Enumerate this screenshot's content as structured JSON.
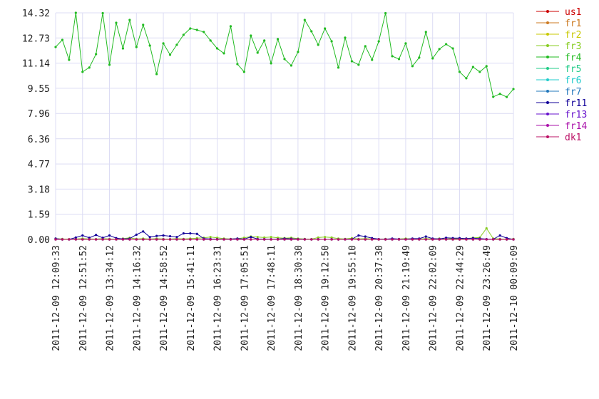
{
  "chart_data": {
    "type": "line",
    "categories": [
      "2011-12-09 12:09:33",
      null,
      null,
      null,
      "2011-12-09 12:51:52",
      null,
      null,
      null,
      "2011-12-09 13:34:12",
      null,
      null,
      null,
      "2011-12-09 14:16:32",
      null,
      null,
      null,
      "2011-12-09 14:58:52",
      null,
      null,
      null,
      "2011-12-09 15:41:11",
      null,
      null,
      null,
      "2011-12-09 16:23:31",
      null,
      null,
      null,
      "2011-12-09 17:05:51",
      null,
      null,
      null,
      "2011-12-09 17:48:11",
      null,
      null,
      null,
      "2011-12-09 18:30:30",
      null,
      null,
      null,
      "2011-12-09 19:12:50",
      null,
      null,
      null,
      "2011-12-09 19:55:10",
      null,
      null,
      null,
      "2011-12-09 20:37:30",
      null,
      null,
      null,
      "2011-12-09 21:19:49",
      null,
      null,
      null,
      "2011-12-09 22:02:09",
      null,
      null,
      null,
      "2011-12-09 22:44:29",
      null,
      null,
      null,
      "2011-12-09 23:26:49",
      null,
      null,
      null,
      "2011-12-10 00:09:09"
    ],
    "ylim": [
      0,
      14.32
    ],
    "yticks": [
      {
        "value": 0,
        "label": "0.00"
      },
      1.59,
      3.18,
      4.77,
      6.36,
      7.96,
      9.55,
      11.14,
      12.73,
      14.32
    ],
    "grid": true,
    "legend": "right",
    "series": [
      {
        "name": "us1",
        "color": "#cc0000",
        "values": [
          0,
          0,
          0,
          0,
          0,
          0,
          0,
          0,
          0,
          0,
          0,
          0,
          0,
          0,
          0,
          0,
          0,
          0,
          0,
          0,
          0,
          0,
          0,
          0,
          0,
          0,
          0,
          0,
          0,
          0,
          0,
          0,
          0,
          0,
          0,
          0,
          0,
          0,
          0,
          0,
          0,
          0,
          0,
          0,
          0,
          0,
          0,
          0,
          0,
          0,
          0,
          0,
          0,
          0,
          0,
          0,
          0,
          0,
          0,
          0,
          0,
          0,
          0,
          0,
          0,
          0,
          0,
          0,
          0
        ]
      },
      {
        "name": "fr1",
        "color": "#cc7a22",
        "values": [
          0,
          0,
          0,
          0,
          0,
          0,
          0,
          0,
          0,
          0,
          0,
          0,
          0,
          0,
          0,
          0,
          0,
          0,
          0,
          0,
          0,
          0,
          0,
          0,
          0,
          0,
          0,
          0,
          0,
          0,
          0,
          0,
          0,
          0,
          0,
          0,
          0,
          0,
          0,
          0,
          0,
          0,
          0,
          0,
          0,
          0,
          0,
          0,
          0,
          0,
          0,
          0,
          0,
          0,
          0,
          0,
          0,
          0,
          0,
          0,
          0,
          0,
          0,
          0,
          0,
          0,
          0,
          0,
          0
        ]
      },
      {
        "name": "fr2",
        "color": "#c8c800",
        "values": [
          0,
          0,
          0,
          0,
          0,
          0,
          0,
          0,
          0,
          0,
          0,
          0,
          0,
          0,
          0,
          0,
          0,
          0,
          0,
          0,
          0,
          0,
          0,
          0,
          0,
          0,
          0,
          0,
          0,
          0,
          0,
          0,
          0,
          0,
          0,
          0,
          0,
          0,
          0,
          0,
          0,
          0,
          0,
          0,
          0,
          0,
          0,
          0,
          0,
          0,
          0,
          0,
          0,
          0,
          0,
          0,
          0,
          0,
          0,
          0,
          0,
          0,
          0,
          0,
          0,
          0,
          0,
          0,
          0
        ]
      },
      {
        "name": "fr3",
        "color": "#88cc22",
        "values": [
          0.05,
          0.03,
          0.02,
          0.03,
          0.05,
          0.03,
          0.02,
          0.05,
          0.03,
          0.02,
          0.05,
          0.1,
          0.03,
          0.05,
          0.02,
          0.05,
          0.03,
          0.02,
          0.05,
          0.03,
          0.05,
          0.08,
          0.1,
          0.15,
          0.1,
          0.05,
          0.03,
          0.05,
          0.1,
          0.18,
          0.15,
          0.12,
          0.15,
          0.1,
          0.08,
          0.1,
          0.05,
          0.03,
          0.02,
          0.12,
          0.15,
          0.12,
          0.05,
          0.03,
          0.08,
          0.03,
          0.05,
          0.03,
          0.02,
          0.03,
          0.02,
          0.03,
          0.05,
          0.03,
          0.02,
          0.05,
          0.03,
          0.05,
          0.03,
          0.05,
          0.03,
          0.05,
          0.1,
          0.12,
          0.7,
          0.05,
          0.03,
          0.02,
          0.03
        ]
      },
      {
        "name": "fr4",
        "color": "#22bb22",
        "values": [
          12.16,
          12.61,
          11.35,
          14.32,
          10.59,
          10.86,
          11.71,
          14.3,
          11.04,
          13.69,
          12.07,
          13.87,
          12.16,
          13.56,
          12.25,
          10.45,
          12.39,
          11.67,
          12.3,
          12.93,
          13.33,
          13.24,
          13.11,
          12.57,
          12.07,
          11.76,
          13.47,
          11.08,
          10.59,
          12.88,
          11.8,
          12.57,
          11.13,
          12.66,
          11.4,
          10.99,
          11.85,
          13.87,
          13.15,
          12.3,
          13.33,
          12.52,
          10.86,
          12.75,
          11.26,
          11.04,
          12.21,
          11.35,
          12.52,
          14.3,
          11.58,
          11.4,
          12.39,
          10.95,
          11.49,
          13.11,
          11.44,
          12.03,
          12.34,
          12.07,
          10.59,
          10.18,
          10.9,
          10.59,
          10.95,
          9.01,
          9.2,
          9.0,
          9.5
        ]
      },
      {
        "name": "fr5",
        "color": "#22cc88",
        "values": [
          0,
          0,
          0,
          0,
          0,
          0,
          0,
          0,
          0,
          0,
          0,
          0,
          0,
          0,
          0,
          0,
          0,
          0,
          0,
          0,
          0,
          0,
          0,
          0,
          0,
          0,
          0,
          0,
          0,
          0,
          0,
          0,
          0,
          0,
          0,
          0,
          0,
          0,
          0,
          0,
          0,
          0,
          0,
          0,
          0,
          0,
          0,
          0,
          0,
          0,
          0,
          0,
          0,
          0,
          0,
          0,
          0,
          0,
          0,
          0,
          0,
          0,
          0,
          0,
          0,
          0,
          0,
          0,
          0
        ]
      },
      {
        "name": "fr6",
        "color": "#22cccc",
        "values": [
          0,
          0,
          0,
          0,
          0,
          0,
          0,
          0,
          0,
          0,
          0,
          0,
          0,
          0,
          0,
          0,
          0,
          0,
          0,
          0,
          0,
          0,
          0,
          0,
          0,
          0,
          0,
          0,
          0,
          0,
          0,
          0,
          0,
          0,
          0,
          0,
          0,
          0,
          0,
          0,
          0,
          0,
          0,
          0,
          0,
          0,
          0,
          0,
          0,
          0,
          0,
          0,
          0,
          0,
          0,
          0,
          0,
          0,
          0,
          0,
          0,
          0,
          0,
          0,
          0,
          0,
          0,
          0,
          0
        ]
      },
      {
        "name": "fr7",
        "color": "#2277bb",
        "values": [
          0,
          0,
          0,
          0,
          0,
          0,
          0,
          0,
          0,
          0,
          0,
          0,
          0,
          0,
          0,
          0,
          0,
          0,
          0,
          0,
          0,
          0,
          0,
          0,
          0,
          0,
          0,
          0,
          0,
          0,
          0,
          0,
          0,
          0,
          0,
          0,
          0,
          0,
          0,
          0,
          0,
          0,
          0,
          0,
          0,
          0,
          0,
          0,
          0,
          0,
          0,
          0,
          0,
          0,
          0,
          0,
          0,
          0,
          0,
          0,
          0,
          0,
          0,
          0,
          0,
          0,
          0,
          0,
          0
        ]
      },
      {
        "name": "fr11",
        "color": "#110099",
        "values": [
          0.05,
          0,
          0,
          0.12,
          0.25,
          0.1,
          0.28,
          0.1,
          0.25,
          0.08,
          0.03,
          0.05,
          0.3,
          0.5,
          0.15,
          0.22,
          0.25,
          0.2,
          0.15,
          0.38,
          0.38,
          0.35,
          0.05,
          0.03,
          0.02,
          0.01,
          0.02,
          0.05,
          0.02,
          0.15,
          0.03,
          0.02,
          0.01,
          0.02,
          0.05,
          0.04,
          0.02,
          0.01,
          0,
          0.01,
          0,
          0.01,
          0,
          0.01,
          0.02,
          0.25,
          0.18,
          0.08,
          0.02,
          0.01,
          0.05,
          0.02,
          0.01,
          0.05,
          0.05,
          0.18,
          0.05,
          0.03,
          0.1,
          0.08,
          0.08,
          0.05,
          0.08,
          0.05,
          0.02,
          0.01,
          0.25,
          0.08,
          0
        ]
      },
      {
        "name": "fr13",
        "color": "#6611cc",
        "values": [
          0,
          0,
          0,
          0,
          0,
          0,
          0,
          0,
          0,
          0,
          0,
          0,
          0,
          0,
          0,
          0,
          0,
          0,
          0,
          0,
          0,
          0,
          0,
          0,
          0,
          0,
          0,
          0,
          0,
          0,
          0,
          0,
          0,
          0,
          0,
          0,
          0,
          0,
          0,
          0,
          0,
          0,
          0,
          0,
          0,
          0,
          0,
          0,
          0,
          0,
          0,
          0,
          0,
          0,
          0,
          0,
          0,
          0,
          0,
          0,
          0,
          0,
          0,
          0,
          0,
          0,
          0,
          0,
          0
        ]
      },
      {
        "name": "fr14",
        "color": "#aa11aa",
        "values": [
          0,
          0,
          0,
          0,
          0,
          0,
          0,
          0,
          0,
          0,
          0,
          0,
          0,
          0,
          0,
          0,
          0,
          0,
          0,
          0,
          0,
          0,
          0,
          0,
          0,
          0,
          0,
          0,
          0,
          0,
          0,
          0,
          0,
          0,
          0,
          0,
          0,
          0,
          0,
          0,
          0,
          0,
          0,
          0,
          0,
          0,
          0,
          0,
          0,
          0,
          0,
          0,
          0,
          0,
          0,
          0,
          0,
          0,
          0,
          0,
          0,
          0,
          0,
          0,
          0,
          0,
          0,
          0,
          0
        ]
      },
      {
        "name": "dk1",
        "color": "#bb1166",
        "values": [
          0,
          0,
          0,
          0,
          0,
          0,
          0,
          0,
          0,
          0,
          0,
          0,
          0,
          0,
          0,
          0,
          0,
          0,
          0,
          0,
          0,
          0,
          0,
          0,
          0,
          0,
          0,
          0,
          0,
          0,
          0,
          0,
          0,
          0,
          0,
          0,
          0,
          0,
          0,
          0,
          0,
          0,
          0,
          0,
          0,
          0,
          0,
          0,
          0,
          0,
          0,
          0,
          0,
          0,
          0,
          0,
          0,
          0,
          0,
          0,
          0,
          0,
          0,
          0,
          0,
          0,
          0,
          0,
          0
        ]
      }
    ]
  }
}
